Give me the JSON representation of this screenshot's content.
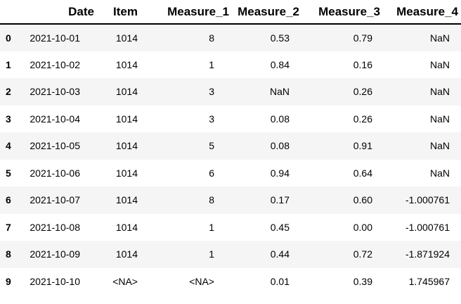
{
  "table": {
    "columns": [
      "",
      "Date",
      "Item",
      "Measure_1",
      "Measure_2",
      "Measure_3",
      "Measure_4"
    ],
    "rows": [
      {
        "index": "0",
        "cells": [
          "2021-10-01",
          "1014",
          "8",
          "0.53",
          "0.79",
          "NaN"
        ]
      },
      {
        "index": "1",
        "cells": [
          "2021-10-02",
          "1014",
          "1",
          "0.84",
          "0.16",
          "NaN"
        ]
      },
      {
        "index": "2",
        "cells": [
          "2021-10-03",
          "1014",
          "3",
          "NaN",
          "0.26",
          "NaN"
        ]
      },
      {
        "index": "3",
        "cells": [
          "2021-10-04",
          "1014",
          "3",
          "0.08",
          "0.26",
          "NaN"
        ]
      },
      {
        "index": "4",
        "cells": [
          "2021-10-05",
          "1014",
          "5",
          "0.08",
          "0.91",
          "NaN"
        ]
      },
      {
        "index": "5",
        "cells": [
          "2021-10-06",
          "1014",
          "6",
          "0.94",
          "0.64",
          "NaN"
        ]
      },
      {
        "index": "6",
        "cells": [
          "2021-10-07",
          "1014",
          "8",
          "0.17",
          "0.60",
          "-1.000761"
        ]
      },
      {
        "index": "7",
        "cells": [
          "2021-10-08",
          "1014",
          "1",
          "0.45",
          "0.00",
          "-1.000761"
        ]
      },
      {
        "index": "8",
        "cells": [
          "2021-10-09",
          "1014",
          "1",
          "0.44",
          "0.72",
          "-1.871924"
        ]
      },
      {
        "index": "9",
        "cells": [
          "2021-10-10",
          "<NA>",
          "<NA>",
          "0.01",
          "0.39",
          "1.745967"
        ]
      }
    ],
    "colors": {
      "stripe": "#f5f5f5",
      "header_border": "#000000",
      "text": "#000000",
      "background": "#ffffff"
    }
  }
}
